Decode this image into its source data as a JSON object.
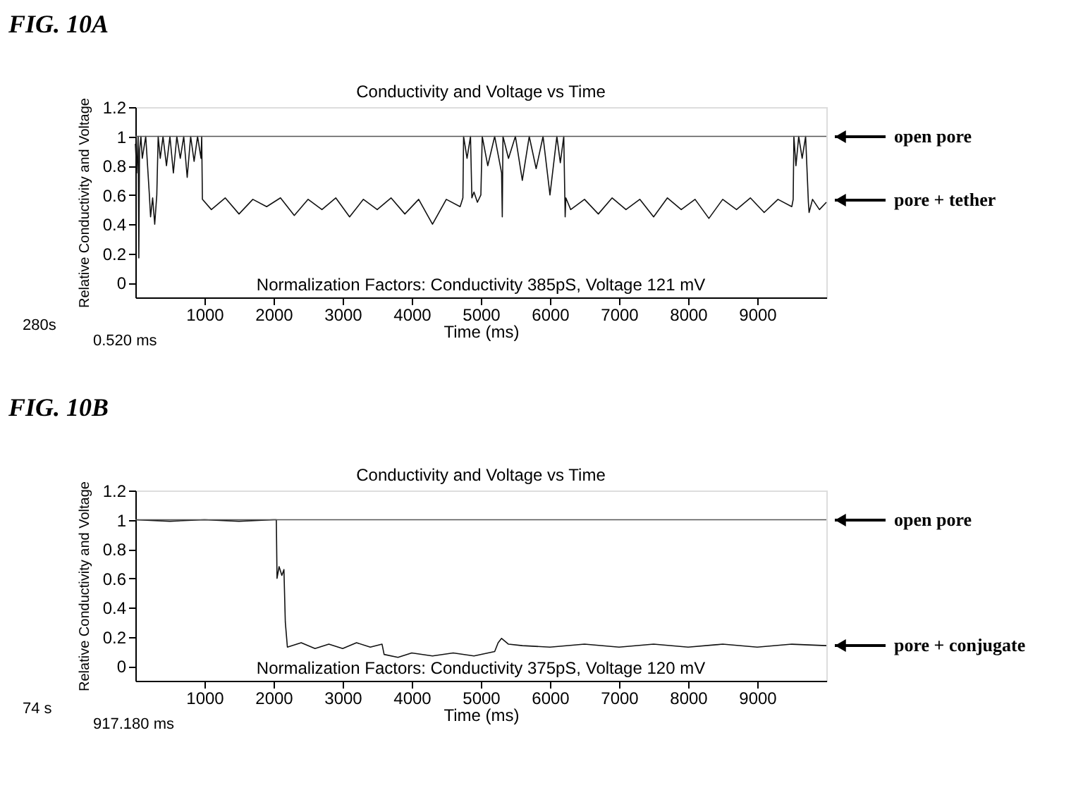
{
  "chart_data": [
    {
      "type": "line",
      "title": "Conductivity and Voltage vs Time",
      "xlabel": "Time (ms)",
      "ylabel": "Relative Conductivity and Voltage",
      "xlim": [
        0,
        10000
      ],
      "xticks": [
        1000,
        2000,
        3000,
        4000,
        5000,
        6000,
        7000,
        8000,
        9000
      ],
      "ylim": [
        -0.1,
        1.2
      ],
      "yticks": [
        0,
        0.2,
        0.4,
        0.6,
        0.8,
        1,
        1.2
      ],
      "marker": "none",
      "line_style": "solid",
      "series": [
        {
          "color": "#111111",
          "x": [
            0,
            20,
            40,
            50,
            60,
            80,
            100,
            150,
            200,
            220,
            250,
            280,
            310,
            330,
            360,
            400,
            450,
            500,
            550,
            600,
            650,
            700,
            750,
            800,
            850,
            900,
            950,
            960,
            970,
            1100,
            1300,
            1500,
            1700,
            1900,
            2100,
            2300,
            2500,
            2700,
            2900,
            3100,
            3300,
            3500,
            3700,
            3900,
            4100,
            4300,
            4500,
            4700,
            4740,
            4750,
            4800,
            4850,
            4870,
            4900,
            4950,
            5000,
            5020,
            5100,
            5200,
            5300,
            5310,
            5320,
            5400,
            5500,
            5600,
            5700,
            5800,
            5900,
            6000,
            6100,
            6150,
            6200,
            6220,
            6230,
            6300,
            6500,
            6700,
            6900,
            7100,
            7300,
            7500,
            7700,
            7900,
            8100,
            8300,
            8500,
            8700,
            8900,
            9100,
            9300,
            9500,
            9520,
            9530,
            9560,
            9600,
            9650,
            9700,
            9740,
            9750,
            9800,
            9900,
            10000
          ],
          "values": [
            0.95,
            0.75,
            1,
            0.17,
            0.9,
            1,
            0.85,
            1,
            0.62,
            0.45,
            0.58,
            0.4,
            0.6,
            1,
            0.85,
            1,
            0.8,
            1,
            0.75,
            1,
            0.85,
            1,
            0.72,
            1,
            0.83,
            1,
            0.85,
            1,
            0.57,
            0.5,
            0.58,
            0.47,
            0.57,
            0.52,
            0.58,
            0.46,
            0.57,
            0.5,
            0.58,
            0.45,
            0.57,
            0.5,
            0.58,
            0.47,
            0.57,
            0.4,
            0.57,
            0.52,
            0.58,
            1,
            0.85,
            1,
            0.58,
            0.62,
            0.55,
            0.6,
            1,
            0.8,
            1,
            0.75,
            0.45,
            1,
            0.85,
            1,
            0.7,
            1,
            0.78,
            1,
            0.6,
            1,
            0.82,
            1,
            0.45,
            0.58,
            0.5,
            0.57,
            0.47,
            0.58,
            0.5,
            0.57,
            0.45,
            0.58,
            0.5,
            0.57,
            0.44,
            0.57,
            0.5,
            0.58,
            0.48,
            0.57,
            0.52,
            0.57,
            1,
            0.8,
            1,
            0.85,
            1,
            0.55,
            0.48,
            0.57,
            0.5,
            0.55
          ]
        },
        {
          "color": "#555555",
          "x": [
            0,
            10000
          ],
          "values": [
            1,
            1
          ]
        }
      ],
      "annotations": [
        "FIG. 10A",
        "Normalization Factors:  Conductivity 385pS,   Voltage  121 mV",
        "280s",
        "0.520 ms",
        "open pore",
        "pore + tether"
      ]
    },
    {
      "type": "line",
      "title": "Conductivity and Voltage vs Time",
      "xlabel": "Time (ms)",
      "ylabel": "Relative Conductivity and Voltage",
      "xlim": [
        0,
        10000
      ],
      "xticks": [
        1000,
        2000,
        3000,
        4000,
        5000,
        6000,
        7000,
        8000,
        9000
      ],
      "ylim": [
        -0.1,
        1.2
      ],
      "yticks": [
        0,
        0.2,
        0.4,
        0.6,
        0.8,
        1,
        1.2
      ],
      "marker": "none",
      "line_style": "solid",
      "series": [
        {
          "color": "#111111",
          "x": [
            0,
            500,
            1000,
            1500,
            2000,
            2040,
            2050,
            2080,
            2120,
            2150,
            2170,
            2200,
            2400,
            2600,
            2800,
            3000,
            3200,
            3400,
            3570,
            3600,
            3800,
            4000,
            4300,
            4600,
            4900,
            5200,
            5250,
            5300,
            5400,
            5600,
            6000,
            6500,
            7000,
            7500,
            8000,
            8500,
            9000,
            9500,
            10000
          ],
          "values": [
            1,
            0.99,
            1,
            0.99,
            1,
            1,
            0.6,
            0.68,
            0.62,
            0.66,
            0.3,
            0.13,
            0.16,
            0.12,
            0.15,
            0.12,
            0.16,
            0.13,
            0.15,
            0.08,
            0.06,
            0.09,
            0.07,
            0.09,
            0.07,
            0.1,
            0.16,
            0.19,
            0.15,
            0.14,
            0.13,
            0.15,
            0.13,
            0.15,
            0.13,
            0.15,
            0.13,
            0.15,
            0.14
          ]
        },
        {
          "color": "#555555",
          "x": [
            0,
            10000
          ],
          "values": [
            1,
            1
          ]
        }
      ],
      "annotations": [
        "FIG. 10B",
        "Normalization Factors:  Conductivity 375pS,   Voltage  120 mV",
        "74 s",
        "917.180 ms",
        "open pore",
        "pore + conjugate"
      ]
    }
  ]
}
